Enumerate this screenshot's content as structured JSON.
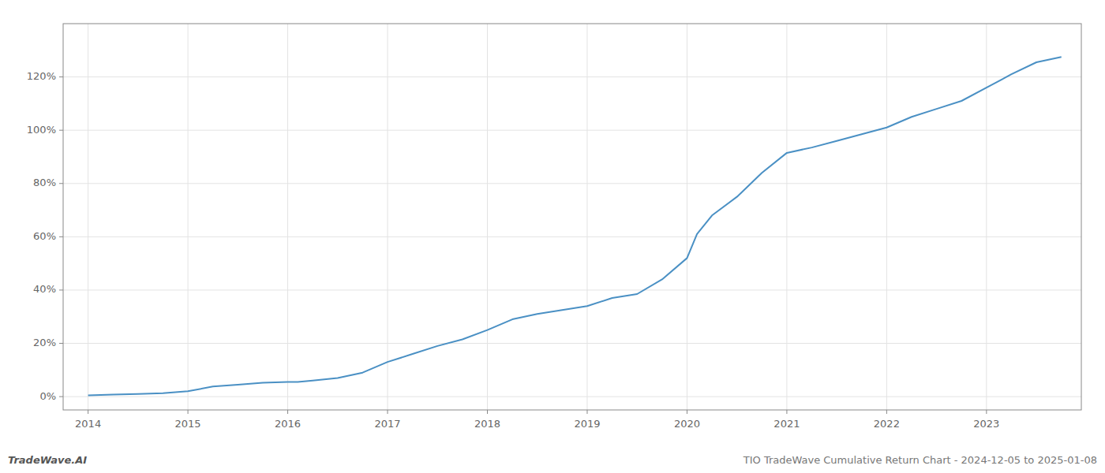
{
  "chart_data": {
    "type": "line",
    "title": "TIO TradeWave Cumulative Return Chart - 2024-12-05 to 2025-01-08",
    "annotations": [
      "TradeWave.AI"
    ],
    "color": "#4a90c4",
    "grid": true,
    "x": [
      2014.0,
      2014.25,
      2014.5,
      2014.75,
      2015.0,
      2015.25,
      2015.5,
      2015.75,
      2016.0,
      2016.1,
      2016.25,
      2016.5,
      2016.75,
      2017.0,
      2017.25,
      2017.5,
      2017.75,
      2018.0,
      2018.25,
      2018.5,
      2018.75,
      2019.0,
      2019.25,
      2019.5,
      2019.75,
      2020.0,
      2020.1,
      2020.25,
      2020.5,
      2020.75,
      2021.0,
      2021.25,
      2021.5,
      2021.75,
      2022.0,
      2022.25,
      2022.5,
      2022.75,
      2023.0,
      2023.25,
      2023.5,
      2023.75
    ],
    "values": [
      0.5,
      0.8,
      1.0,
      1.3,
      2.0,
      3.8,
      4.5,
      5.2,
      5.5,
      5.5,
      6.0,
      7.0,
      9.0,
      13.0,
      16.0,
      19.0,
      21.5,
      25.0,
      29.0,
      31.0,
      32.5,
      34.0,
      37.0,
      38.5,
      44.0,
      52.0,
      61.0,
      68.0,
      75.0,
      84.0,
      91.5,
      93.5,
      96.0,
      98.5,
      101.0,
      105.0,
      108.0,
      111.0,
      116.0,
      121.0,
      125.5,
      127.5
    ],
    "xlim": [
      2013.75,
      2023.95
    ],
    "xticks": [
      2014,
      2015,
      2016,
      2017,
      2018,
      2019,
      2020,
      2021,
      2022,
      2023
    ],
    "ylim": [
      -5,
      140
    ],
    "yticks": [
      {
        "value": 0,
        "label": "0%"
      },
      {
        "value": 20,
        "label": "20%"
      },
      {
        "value": 40,
        "label": "40%"
      },
      {
        "value": 60,
        "label": "60%"
      },
      {
        "value": 80,
        "label": "80%"
      },
      {
        "value": 100,
        "label": "100%"
      },
      {
        "value": 120,
        "label": "120%"
      }
    ]
  }
}
